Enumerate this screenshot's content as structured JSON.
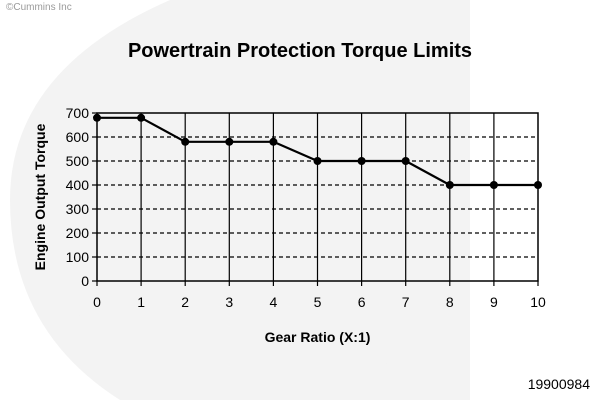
{
  "header": {
    "copyright": "©Cummins Inc"
  },
  "footer": {
    "doc_number": "19900984"
  },
  "colors": {
    "line": "#000000",
    "grid": "#000000",
    "watermark": "#f0f0f0"
  },
  "chart_data": {
    "type": "line",
    "title": "Powertrain Protection Torque Limits",
    "xlabel": "Gear Ratio (X:1)",
    "ylabel": "Engine Output Torque",
    "x": [
      0,
      1,
      2,
      3,
      4,
      5,
      6,
      7,
      8,
      9,
      10
    ],
    "series": [
      {
        "values": [
          680,
          680,
          580,
          580,
          580,
          500,
          500,
          500,
          400,
          400,
          400
        ]
      }
    ],
    "xlim": [
      0,
      10
    ],
    "ylim": [
      0,
      700
    ],
    "x_ticks": [
      "0",
      "1",
      "2",
      "3",
      "4",
      "5",
      "6",
      "7",
      "8",
      "9",
      "10"
    ],
    "y_ticks": [
      "0",
      "100",
      "200",
      "300",
      "400",
      "500",
      "600",
      "700"
    ],
    "grid": "dashed horizontal, solid vertical",
    "legend": "none"
  }
}
